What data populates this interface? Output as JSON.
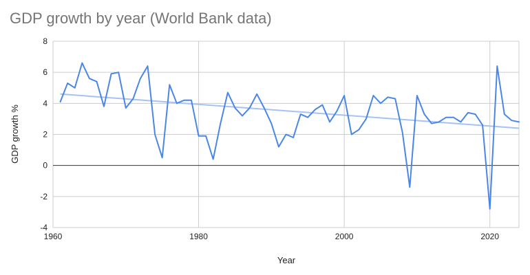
{
  "chart_data": {
    "type": "line",
    "title": "GDP growth by year (World Bank data)",
    "xlabel": "Year",
    "ylabel": "GDP growth %",
    "xlim": [
      1960,
      2024
    ],
    "ylim": [
      -4,
      8
    ],
    "x_ticks": [
      1960,
      1980,
      2000,
      2020
    ],
    "y_ticks": [
      -4,
      -2,
      0,
      2,
      4,
      6,
      8
    ],
    "grid": true,
    "legend": "none",
    "colors": {
      "series": "#4a86e8",
      "trendline": "#a4c2f4",
      "gridline": "#cccccc",
      "zero_line": "#333333",
      "title": "#757575"
    },
    "series": [
      {
        "x": [
          1961,
          1962,
          1963,
          1964,
          1965,
          1966,
          1967,
          1968,
          1969,
          1970,
          1971,
          1972,
          1973,
          1974,
          1975,
          1976,
          1977,
          1978,
          1979,
          1980,
          1981,
          1982,
          1983,
          1984,
          1985,
          1986,
          1987,
          1988,
          1989,
          1990,
          1991,
          1992,
          1993,
          1994,
          1995,
          1996,
          1997,
          1998,
          1999,
          2000,
          2001,
          2002,
          2003,
          2004,
          2005,
          2006,
          2007,
          2008,
          2009,
          2010,
          2011,
          2012,
          2013,
          2014,
          2015,
          2016,
          2017,
          2018,
          2019,
          2020,
          2021,
          2022,
          2023,
          2024
        ],
        "values": [
          4.1,
          5.3,
          5.0,
          6.6,
          5.6,
          5.4,
          3.8,
          5.9,
          6.0,
          3.7,
          4.3,
          5.6,
          6.4,
          2.0,
          0.5,
          5.2,
          4.0,
          4.2,
          4.2,
          1.9,
          1.9,
          0.4,
          2.7,
          4.7,
          3.7,
          3.2,
          3.7,
          4.6,
          3.7,
          2.7,
          1.2,
          2.0,
          1.8,
          3.3,
          3.1,
          3.6,
          3.9,
          2.8,
          3.5,
          4.5,
          2.0,
          2.3,
          3.0,
          4.5,
          4.0,
          4.4,
          4.3,
          2.1,
          -1.4,
          4.5,
          3.3,
          2.7,
          2.8,
          3.1,
          3.1,
          2.8,
          3.4,
          3.3,
          2.6,
          -2.8,
          6.4,
          3.3,
          2.9,
          2.8
        ]
      }
    ],
    "trendline": {
      "x": [
        1961,
        2024
      ],
      "values": [
        4.6,
        2.4
      ]
    }
  }
}
